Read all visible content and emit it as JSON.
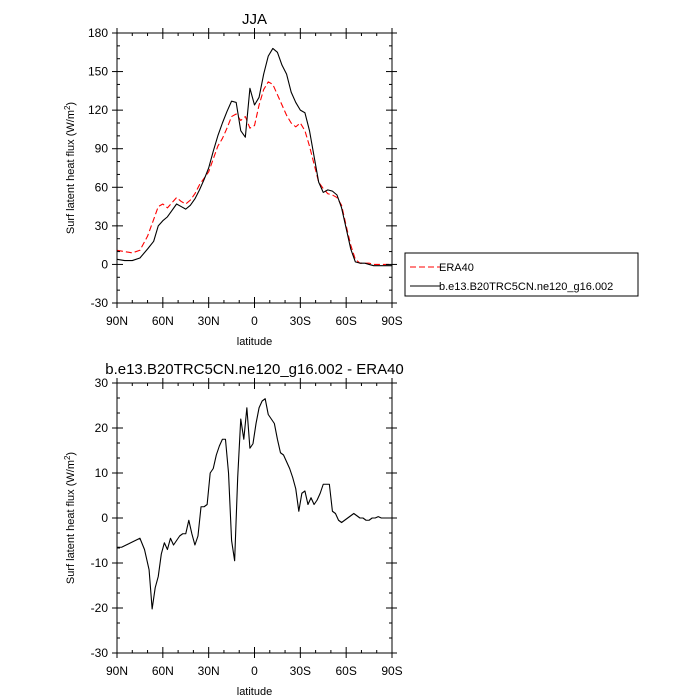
{
  "chart_data": [
    {
      "type": "line",
      "title": "JJA",
      "xlabel": "latitude",
      "ylabel": "Surf latent heat flux",
      "ylabel_unit_prefix": "(W/m",
      "ylabel_unit_sup": "2",
      "ylabel_unit_suffix": ")",
      "xlim": [
        90,
        -90
      ],
      "ylim": [
        -30,
        180
      ],
      "x_ticks": [
        90,
        60,
        30,
        0,
        -30,
        -60,
        -90
      ],
      "x_tick_labels": [
        "90N",
        "60N",
        "30N",
        "0",
        "30S",
        "60S",
        "90S"
      ],
      "y_ticks": [
        -30,
        0,
        30,
        60,
        90,
        120,
        150,
        180
      ],
      "y_tick_labels": [
        "-30",
        "0",
        "30",
        "60",
        "90",
        "120",
        "150",
        "180"
      ],
      "legend": "outside-right",
      "series": [
        {
          "name": "ERA40",
          "color": "#ff0000",
          "dash": "dashed",
          "x": [
            90,
            85,
            80,
            75,
            70,
            66,
            63,
            60,
            57,
            54,
            51,
            48,
            45,
            42,
            39,
            36,
            33,
            30,
            27,
            24,
            21,
            18,
            15,
            12,
            9,
            6,
            3,
            0,
            -3,
            -6,
            -9,
            -12,
            -15,
            -18,
            -21,
            -24,
            -27,
            -30,
            -33,
            -36,
            -39,
            -42,
            -45,
            -48,
            -51,
            -54,
            -57,
            -60,
            -63,
            -66,
            -69,
            -72,
            -75,
            -78,
            -81,
            -84,
            -87,
            -90
          ],
          "y": [
            11,
            10,
            9,
            11,
            22,
            35,
            45,
            47,
            44,
            48,
            52,
            49,
            47,
            50,
            55,
            62,
            67,
            72,
            82,
            92,
            98,
            106,
            115,
            117,
            112,
            115,
            106,
            108,
            124,
            136,
            142,
            140,
            132,
            124,
            116,
            110,
            107,
            110,
            104,
            92,
            78,
            64,
            59,
            55,
            54,
            52,
            46,
            30,
            15,
            4,
            1,
            1,
            1,
            0,
            0,
            0,
            0,
            0
          ]
        },
        {
          "name": "b.e13.B20TRC5CN.ne120_g16.002",
          "color": "#000000",
          "dash": "solid",
          "x": [
            90,
            85,
            80,
            75,
            70,
            66,
            63,
            60,
            57,
            54,
            51,
            48,
            45,
            42,
            39,
            36,
            33,
            30,
            27,
            24,
            21,
            18,
            15,
            12,
            9,
            6,
            3,
            0,
            -3,
            -6,
            -9,
            -12,
            -15,
            -18,
            -21,
            -24,
            -27,
            -30,
            -33,
            -36,
            -39,
            -42,
            -45,
            -48,
            -51,
            -54,
            -57,
            -60,
            -63,
            -66,
            -69,
            -72,
            -75,
            -78,
            -81,
            -84,
            -87,
            -90
          ],
          "y": [
            4,
            3,
            3,
            5,
            12,
            18,
            30,
            34,
            37,
            42,
            47,
            45,
            43,
            46,
            51,
            58,
            66,
            75,
            88,
            100,
            110,
            119,
            127,
            126,
            104,
            99,
            137,
            124,
            130,
            148,
            162,
            168,
            165,
            155,
            148,
            134,
            126,
            120,
            118,
            104,
            84,
            64,
            56,
            58,
            57,
            54,
            44,
            28,
            12,
            2,
            1,
            1,
            0,
            -1,
            -1,
            -1,
            -1,
            -1
          ]
        }
      ]
    },
    {
      "type": "line",
      "title": "b.e13.B20TRC5CN.ne120_g16.002 - ERA40",
      "xlabel": "latitude",
      "ylabel": "Surf latent heat flux",
      "ylabel_unit_prefix": "(W/m",
      "ylabel_unit_sup": "2",
      "ylabel_unit_suffix": ")",
      "xlim": [
        90,
        -90
      ],
      "ylim": [
        -30,
        30
      ],
      "x_ticks": [
        90,
        60,
        30,
        0,
        -30,
        -60,
        -90
      ],
      "x_tick_labels": [
        "90N",
        "60N",
        "30N",
        "0",
        "30S",
        "60S",
        "90S"
      ],
      "y_ticks": [
        -30,
        -20,
        -10,
        0,
        10,
        20,
        30
      ],
      "y_tick_labels": [
        "-30",
        "-20",
        "-10",
        "0",
        "10",
        "20",
        "30"
      ],
      "series": [
        {
          "color": "#000000",
          "dash": "solid",
          "x": [
            90,
            87,
            84,
            81,
            78,
            75,
            72,
            69,
            67,
            65,
            63,
            61,
            59,
            57,
            55,
            53,
            51,
            49,
            47,
            45,
            43,
            41,
            39,
            37,
            35,
            33,
            31,
            29,
            27,
            25,
            23,
            21,
            19,
            17,
            15,
            13,
            11,
            9,
            7,
            5,
            3,
            1,
            -1,
            -3,
            -5,
            -7,
            -9,
            -11,
            -13,
            -15,
            -17,
            -19,
            -21,
            -23,
            -25,
            -27,
            -29,
            -31,
            -33,
            -35,
            -37,
            -39,
            -41,
            -43,
            -45,
            -47,
            -49,
            -51,
            -53,
            -55,
            -57,
            -59,
            -61,
            -63,
            -65,
            -67,
            -69,
            -71,
            -73,
            -75,
            -77,
            -79,
            -81,
            -83,
            -85,
            -87,
            -90
          ],
          "y": [
            -6.5,
            -6.5,
            -6,
            -5.5,
            -5,
            -4.5,
            -7,
            -11.5,
            -20.2,
            -15.5,
            -13,
            -8,
            -5.5,
            -7,
            -4.5,
            -6,
            -5,
            -4,
            -3.5,
            -3.5,
            -0.5,
            -3.5,
            -6,
            -4,
            2.5,
            2.5,
            3,
            10,
            11,
            14,
            16,
            17.5,
            17.5,
            10,
            -5,
            -9.5,
            9,
            22,
            17.5,
            24.5,
            15.5,
            16.5,
            21,
            24.5,
            26,
            26.5,
            23,
            22,
            21,
            17.5,
            14.5,
            14,
            12.5,
            11,
            9,
            6.5,
            1.5,
            5.5,
            6,
            3,
            4.5,
            3,
            4,
            5.5,
            7.5,
            7.5,
            7.5,
            1.5,
            1,
            -0.5,
            -1,
            -0.5,
            0,
            0.5,
            1,
            0.5,
            0,
            0,
            -0.5,
            -0.5,
            0,
            0,
            0.3,
            0,
            0,
            0,
            0
          ]
        }
      ]
    }
  ]
}
